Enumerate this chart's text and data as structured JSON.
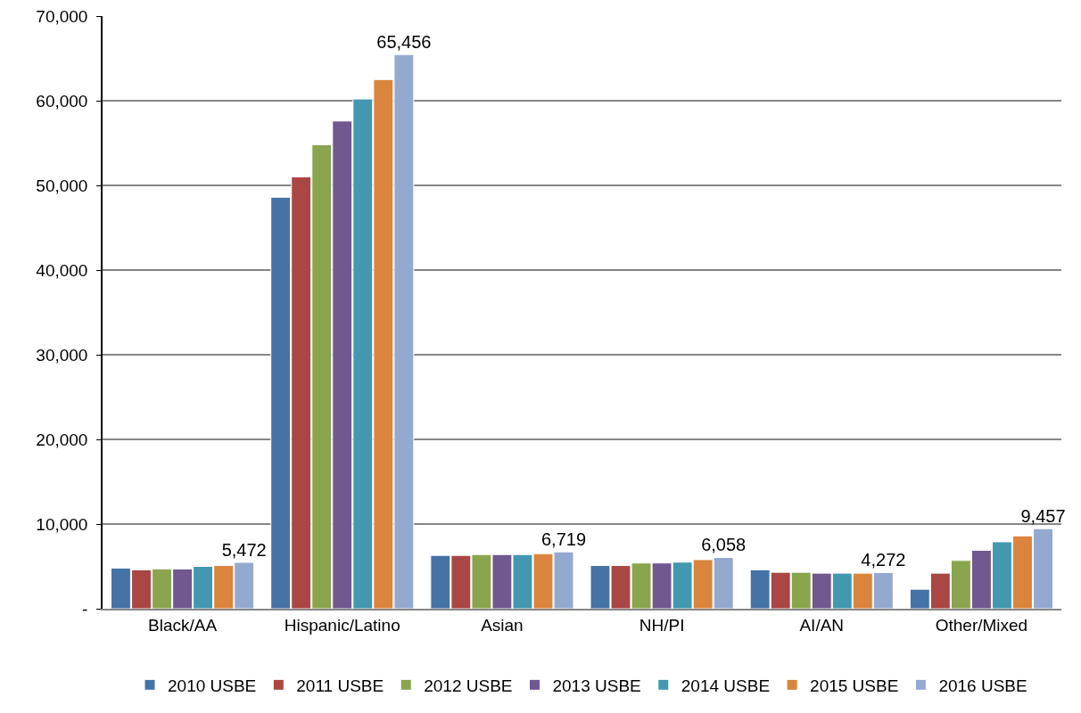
{
  "chart_data": {
    "type": "bar",
    "categories": [
      "Black/AA",
      "Hispanic/Latino",
      "Asian",
      "NH/PI",
      "AI/AN",
      "Other/Mixed"
    ],
    "series": [
      {
        "name": "2010 USBE",
        "color": "#4572a7",
        "values": [
          4800,
          48600,
          6300,
          5100,
          4600,
          2300
        ]
      },
      {
        "name": "2011 USBE",
        "color": "#aa4643",
        "values": [
          4600,
          51000,
          6300,
          5100,
          4300,
          4200
        ]
      },
      {
        "name": "2012 USBE",
        "color": "#89a54e",
        "values": [
          4700,
          54800,
          6400,
          5400,
          4300,
          5700
        ]
      },
      {
        "name": "2013 USBE",
        "color": "#71588f",
        "values": [
          4700,
          57600,
          6400,
          5400,
          4200,
          6900
        ]
      },
      {
        "name": "2014 USBE",
        "color": "#4198af",
        "values": [
          5000,
          60200,
          6400,
          5500,
          4200,
          7900
        ]
      },
      {
        "name": "2015 USBE",
        "color": "#db843d",
        "values": [
          5100,
          62500,
          6500,
          5800,
          4200,
          8600
        ]
      },
      {
        "name": "2016 USBE",
        "color": "#93a9cf",
        "values": [
          5472,
          65456,
          6719,
          6058,
          4272,
          9457
        ],
        "value_labels": [
          "5,472",
          "65,456",
          "6,719",
          "6,058",
          "4,272",
          "9,457"
        ]
      }
    ],
    "ylim": [
      0,
      70000
    ],
    "yticks": [
      {
        "value": 0,
        "label": "-"
      },
      {
        "value": 10000,
        "label": "10,000"
      },
      {
        "value": 20000,
        "label": "20,000"
      },
      {
        "value": 30000,
        "label": "30,000"
      },
      {
        "value": 40000,
        "label": "40,000"
      },
      {
        "value": 50000,
        "label": "50,000"
      },
      {
        "value": 60000,
        "label": "60,000"
      },
      {
        "value": 70000,
        "label": "70,000"
      }
    ],
    "grid": "y",
    "legend": "bottom"
  }
}
